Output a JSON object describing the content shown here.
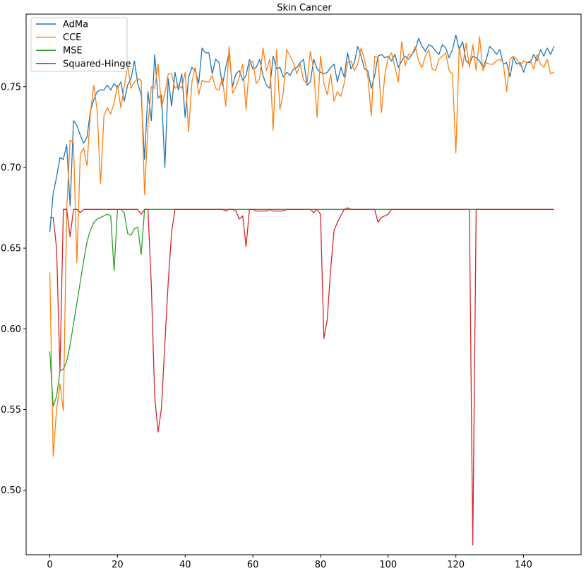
{
  "chart_data": {
    "type": "line",
    "title": "Skin Cancer",
    "xlabel": "",
    "ylabel": "",
    "xlim": [
      -7,
      157
    ],
    "ylim": [
      0.46,
      0.795
    ],
    "xticks": [
      0,
      20,
      40,
      60,
      80,
      100,
      120,
      140
    ],
    "yticks": [
      0.5,
      0.55,
      0.6,
      0.65,
      0.7,
      0.75
    ],
    "xtick_labels": [
      "0",
      "20",
      "40",
      "60",
      "80",
      "100",
      "120",
      "140"
    ],
    "ytick_labels": [
      "0.50",
      "0.55",
      "0.60",
      "0.65",
      "0.70",
      "0.75"
    ],
    "grid": false,
    "legend_position": "top-left",
    "series": [
      {
        "name": "AdMa",
        "color": "#1f77b4",
        "values": [
          0.66,
          0.684,
          0.694,
          0.706,
          0.705,
          0.714,
          0.676,
          0.729,
          0.726,
          0.72,
          0.715,
          0.719,
          0.735,
          0.742,
          0.747,
          0.748,
          0.748,
          0.751,
          0.748,
          0.752,
          0.749,
          0.753,
          0.741,
          0.751,
          0.755,
          0.766,
          0.752,
          0.745,
          0.705,
          0.747,
          0.729,
          0.77,
          0.743,
          0.745,
          0.7,
          0.755,
          0.738,
          0.759,
          0.748,
          0.758,
          0.731,
          0.756,
          0.762,
          0.76,
          0.752,
          0.774,
          0.771,
          0.771,
          0.758,
          0.767,
          0.765,
          0.751,
          0.762,
          0.771,
          0.75,
          0.758,
          0.76,
          0.754,
          0.757,
          0.767,
          0.761,
          0.762,
          0.767,
          0.757,
          0.751,
          0.749,
          0.769,
          0.761,
          0.762,
          0.756,
          0.759,
          0.757,
          0.761,
          0.762,
          0.765,
          0.767,
          0.751,
          0.753,
          0.767,
          0.761,
          0.759,
          0.758,
          0.759,
          0.762,
          0.764,
          0.753,
          0.762,
          0.756,
          0.771,
          0.761,
          0.765,
          0.775,
          0.769,
          0.761,
          0.76,
          0.749,
          0.757,
          0.769,
          0.77,
          0.768,
          0.769,
          0.766,
          0.77,
          0.762,
          0.766,
          0.769,
          0.767,
          0.77,
          0.773,
          0.78,
          0.775,
          0.772,
          0.776,
          0.775,
          0.772,
          0.77,
          0.776,
          0.774,
          0.768,
          0.773,
          0.782,
          0.773,
          0.778,
          0.766,
          0.764,
          0.769,
          0.768,
          0.766,
          0.762,
          0.767,
          0.775,
          0.773,
          0.77,
          0.773,
          0.764,
          0.765,
          0.756,
          0.768,
          0.764,
          0.765,
          0.759,
          0.765,
          0.765,
          0.77,
          0.766,
          0.773,
          0.769,
          0.774,
          0.77,
          0.775
        ]
      },
      {
        "name": "CCE",
        "color": "#ff7f0e",
        "values": [
          0.635,
          0.521,
          0.55,
          0.566,
          0.549,
          0.674,
          0.717,
          0.715,
          0.641,
          0.708,
          0.712,
          0.701,
          0.734,
          0.751,
          0.735,
          0.69,
          0.732,
          0.737,
          0.733,
          0.74,
          0.751,
          0.737,
          0.75,
          0.763,
          0.749,
          0.753,
          0.755,
          0.754,
          0.683,
          0.726,
          0.75,
          0.749,
          0.764,
          0.737,
          0.746,
          0.758,
          0.758,
          0.749,
          0.751,
          0.749,
          0.759,
          0.722,
          0.753,
          0.762,
          0.745,
          0.754,
          0.753,
          0.753,
          0.757,
          0.749,
          0.748,
          0.755,
          0.738,
          0.775,
          0.746,
          0.75,
          0.756,
          0.764,
          0.736,
          0.764,
          0.766,
          0.752,
          0.755,
          0.774,
          0.76,
          0.767,
          0.723,
          0.773,
          0.736,
          0.746,
          0.773,
          0.769,
          0.765,
          0.758,
          0.764,
          0.754,
          0.752,
          0.772,
          0.76,
          0.731,
          0.769,
          0.752,
          0.745,
          0.758,
          0.741,
          0.747,
          0.744,
          0.752,
          0.765,
          0.766,
          0.76,
          0.764,
          0.774,
          0.767,
          0.756,
          0.732,
          0.769,
          0.768,
          0.734,
          0.757,
          0.768,
          0.771,
          0.762,
          0.753,
          0.778,
          0.763,
          0.77,
          0.77,
          0.775,
          0.766,
          0.762,
          0.769,
          0.773,
          0.761,
          0.76,
          0.767,
          0.769,
          0.771,
          0.76,
          0.758,
          0.709,
          0.775,
          0.762,
          0.777,
          0.762,
          0.776,
          0.76,
          0.781,
          0.76,
          0.765,
          0.764,
          0.764,
          0.766,
          0.767,
          0.765,
          0.747,
          0.767,
          0.769,
          0.767,
          0.763,
          0.766,
          0.765,
          0.766,
          0.761,
          0.77,
          0.764,
          0.762,
          0.767,
          0.758,
          0.759
        ]
      },
      {
        "name": "MSE",
        "color": "#2ca02c",
        "values": [
          0.586,
          0.552,
          0.558,
          0.574,
          0.575,
          0.58,
          0.59,
          0.603,
          0.616,
          0.629,
          0.642,
          0.654,
          0.661,
          0.666,
          0.668,
          0.669,
          0.67,
          0.671,
          0.67,
          0.636,
          0.674,
          0.674,
          0.672,
          0.659,
          0.658,
          0.662,
          0.663,
          0.646,
          0.674,
          0.674,
          0.674,
          0.674,
          0.674,
          0.674,
          0.674,
          0.674,
          0.674,
          0.674,
          0.674,
          0.674,
          0.674,
          0.674,
          0.674,
          0.674,
          0.674,
          0.674,
          0.674,
          0.674,
          0.674,
          0.674,
          0.674,
          0.674,
          0.674,
          0.674,
          0.674,
          0.674,
          0.674,
          0.674,
          0.674,
          0.674,
          0.674,
          0.674,
          0.674,
          0.674,
          0.674,
          0.674,
          0.674,
          0.674,
          0.674,
          0.674,
          0.674,
          0.674,
          0.674,
          0.674,
          0.674,
          0.674,
          0.674,
          0.674,
          0.674,
          0.674,
          0.674,
          0.674,
          0.674,
          0.674,
          0.674,
          0.674,
          0.674,
          0.674,
          0.674,
          0.674,
          0.674,
          0.674,
          0.674,
          0.674,
          0.674,
          0.674,
          0.674,
          0.674,
          0.674,
          0.674,
          0.674,
          0.674,
          0.674,
          0.674,
          0.674,
          0.674,
          0.674,
          0.674,
          0.674,
          0.674,
          0.674,
          0.674,
          0.674,
          0.674,
          0.674,
          0.674,
          0.674,
          0.674,
          0.674,
          0.674,
          0.674,
          0.674,
          0.674,
          0.674,
          0.674,
          0.674,
          0.674,
          0.674,
          0.674,
          0.674,
          0.674,
          0.674,
          0.674,
          0.674,
          0.674,
          0.674,
          0.674,
          0.674,
          0.674,
          0.674,
          0.674,
          0.674,
          0.674,
          0.674,
          0.674,
          0.674,
          0.674,
          0.674,
          0.674,
          0.674
        ]
      },
      {
        "name": "Squared-Hinge",
        "color": "#d62728",
        "values": [
          0.669,
          0.669,
          0.65,
          0.574,
          0.674,
          0.674,
          0.657,
          0.674,
          0.674,
          0.672,
          0.674,
          0.674,
          0.674,
          0.674,
          0.674,
          0.674,
          0.674,
          0.674,
          0.674,
          0.674,
          0.674,
          0.674,
          0.674,
          0.674,
          0.674,
          0.674,
          0.674,
          0.671,
          0.674,
          0.674,
          0.627,
          0.558,
          0.536,
          0.551,
          0.591,
          0.629,
          0.66,
          0.674,
          0.674,
          0.674,
          0.674,
          0.674,
          0.674,
          0.674,
          0.674,
          0.674,
          0.674,
          0.674,
          0.674,
          0.674,
          0.674,
          0.674,
          0.673,
          0.674,
          0.674,
          0.673,
          0.668,
          0.67,
          0.651,
          0.674,
          0.674,
          0.673,
          0.673,
          0.673,
          0.673,
          0.674,
          0.673,
          0.673,
          0.673,
          0.673,
          0.674,
          0.674,
          0.674,
          0.674,
          0.674,
          0.674,
          0.674,
          0.674,
          0.672,
          0.674,
          0.671,
          0.594,
          0.606,
          0.637,
          0.661,
          0.666,
          0.67,
          0.674,
          0.675,
          0.674,
          0.674,
          0.674,
          0.674,
          0.674,
          0.674,
          0.674,
          0.674,
          0.666,
          0.669,
          0.67,
          0.671,
          0.674,
          0.674,
          0.674,
          0.674,
          0.674,
          0.674,
          0.674,
          0.674,
          0.674,
          0.674,
          0.674,
          0.674,
          0.674,
          0.674,
          0.674,
          0.674,
          0.674,
          0.674,
          0.674,
          0.674,
          0.674,
          0.674,
          0.674,
          0.674,
          0.466,
          0.674,
          0.674,
          0.674,
          0.674,
          0.674,
          0.674,
          0.674,
          0.674,
          0.674,
          0.674,
          0.674,
          0.674,
          0.674,
          0.674,
          0.674,
          0.674,
          0.674,
          0.674,
          0.674,
          0.674,
          0.674,
          0.674,
          0.674,
          0.674
        ]
      }
    ]
  }
}
